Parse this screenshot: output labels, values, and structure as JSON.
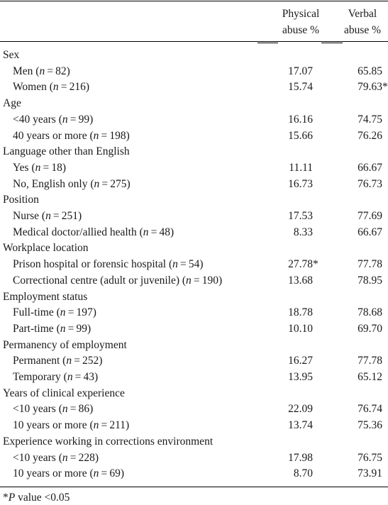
{
  "header": {
    "col1": [
      "Physical",
      "abuse %"
    ],
    "col2": [
      "Verbal",
      "abuse %"
    ]
  },
  "rows": [
    {
      "type": "group",
      "label": "Sex"
    },
    {
      "type": "item",
      "label": "Men",
      "n": "82",
      "v1": "17.07",
      "v2": "65.85"
    },
    {
      "type": "item",
      "label": "Women",
      "n": "216",
      "v1": "15.74",
      "v2": "79.63",
      "v2star": "*"
    },
    {
      "type": "group",
      "label": "Age"
    },
    {
      "type": "item",
      "label": "<40 years",
      "n": "99",
      "v1": "16.16",
      "v2": "74.75"
    },
    {
      "type": "item",
      "label": "40 years or more",
      "n": "198",
      "v1": "15.66",
      "v2": "76.26"
    },
    {
      "type": "group",
      "label": "Language other than English"
    },
    {
      "type": "item",
      "label": "Yes",
      "n": "18",
      "v1": "11.11",
      "v2": "66.67"
    },
    {
      "type": "item",
      "label": "No, English only",
      "n": "275",
      "v1": "16.73",
      "v2": "76.73"
    },
    {
      "type": "group",
      "label": "Position"
    },
    {
      "type": "item",
      "label": "Nurse",
      "n": "251",
      "v1": "17.53",
      "v2": "77.69"
    },
    {
      "type": "item",
      "label": "Medical doctor/allied health",
      "n": "48",
      "v1": "8.33",
      "v2": "66.67"
    },
    {
      "type": "group",
      "label": "Workplace location"
    },
    {
      "type": "item",
      "label": "Prison hospital or forensic hospital",
      "n": "54",
      "v1": "27.78",
      "v1star": "*",
      "v2": "77.78"
    },
    {
      "type": "item",
      "label": "Correctional centre (adult or juvenile)",
      "n": "190",
      "v1": "13.68",
      "v2": "78.95"
    },
    {
      "type": "group",
      "label": "Employment status"
    },
    {
      "type": "item",
      "label": "Full-time",
      "n": "197",
      "v1": "18.78",
      "v2": "78.68"
    },
    {
      "type": "item",
      "label": "Part-time",
      "n": "99",
      "v1": "10.10",
      "v2": "69.70"
    },
    {
      "type": "group",
      "label": "Permanency of employment"
    },
    {
      "type": "item",
      "label": "Permanent",
      "n": "252",
      "v1": "16.27",
      "v2": "77.78"
    },
    {
      "type": "item",
      "label": "Temporary",
      "n": "43",
      "v1": "13.95",
      "v2": "65.12"
    },
    {
      "type": "group",
      "label": "Years of clinical experience"
    },
    {
      "type": "item",
      "label": "<10 years",
      "n": "86",
      "v1": "22.09",
      "v2": "76.74"
    },
    {
      "type": "item",
      "label": "10 years or more",
      "n": "211",
      "v1": "13.74",
      "v2": "75.36"
    },
    {
      "type": "group",
      "label": "Experience working in corrections environment"
    },
    {
      "type": "item",
      "label": "<10 years",
      "n": "228",
      "v1": "17.98",
      "v2": "76.75"
    },
    {
      "type": "item",
      "label": "10 years or more",
      "n": "69",
      "v1": "8.70",
      "v2": "73.91"
    }
  ],
  "footnote": {
    "star": "*",
    "p": "P",
    "text": " value <0.05"
  }
}
